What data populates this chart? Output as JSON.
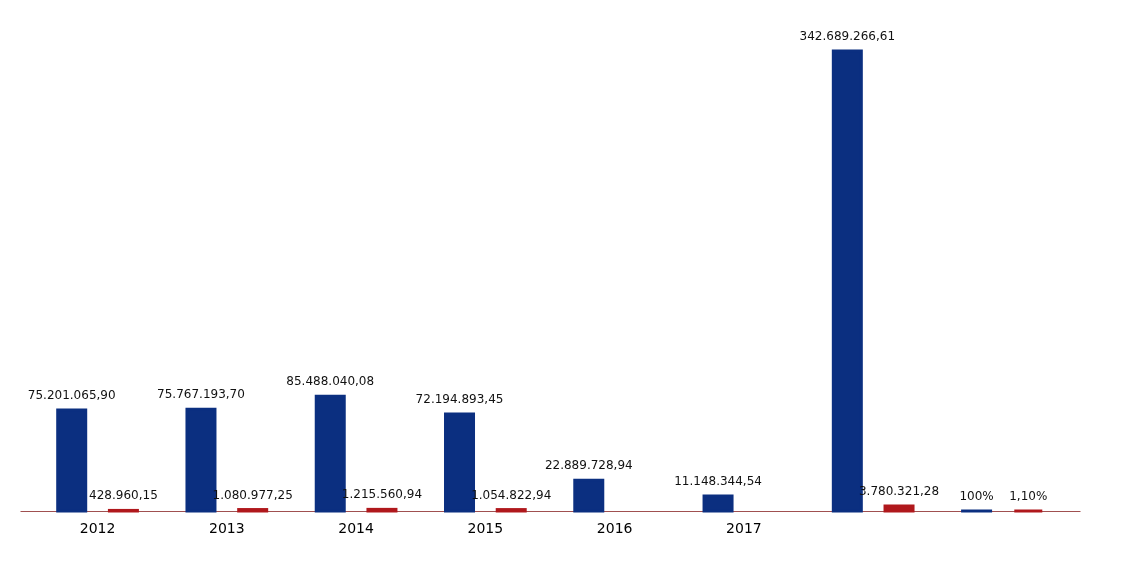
{
  "chart_data": {
    "type": "bar",
    "categories": [
      "2012",
      "2013",
      "2014",
      "2015",
      "2016",
      "2017",
      null,
      null
    ],
    "series": [
      {
        "color": "#0b2f80",
        "values": [
          75201065.9,
          75767193.7,
          85488040.08,
          72194893.45,
          22889728.94,
          11148344.54,
          342689266.61,
          100
        ],
        "value_labels": [
          "75.201.065,90",
          "75.767.193,70",
          "85.488.040,08",
          "72.194.893,45",
          "22.889.728,94",
          "11.148.344,54",
          "342.689.266,61",
          "100%"
        ]
      },
      {
        "color": "#b0181c",
        "values": [
          428960.15,
          1080977.25,
          1215560.94,
          1054822.94,
          null,
          null,
          3780321.28,
          1.1
        ],
        "value_labels": [
          "428.960,15",
          "1.080.977,25",
          "1.215.560,94",
          "1.054.822,94",
          null,
          null,
          "3.780.321,28",
          "1,10%"
        ]
      }
    ],
    "legend": false
  }
}
